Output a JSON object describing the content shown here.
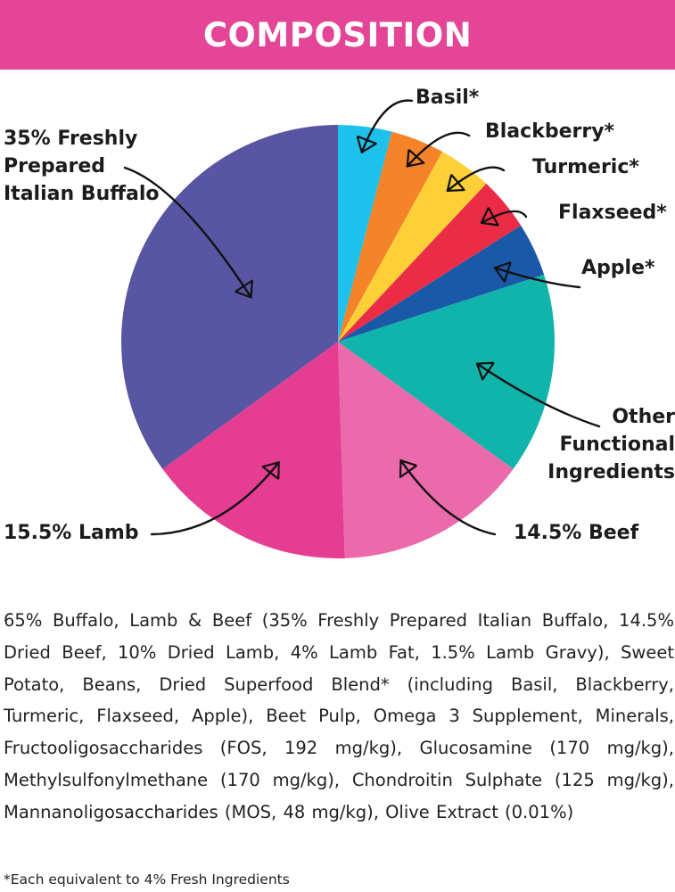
{
  "header": {
    "title": "COMPOSITION",
    "color": "#e54597"
  },
  "chart_data": {
    "type": "pie",
    "title": "COMPOSITION",
    "start_angle_deg": 0,
    "direction": "clockwise",
    "slices": [
      {
        "label": "Basil*",
        "value": 4,
        "color": "#1ec1ec"
      },
      {
        "label": "Blackberry*",
        "value": 4,
        "color": "#f4832a"
      },
      {
        "label": "Turmeric*",
        "value": 4,
        "color": "#fdd037"
      },
      {
        "label": "Flaxseed*",
        "value": 4,
        "color": "#eb2c46"
      },
      {
        "label": "Apple*",
        "value": 4,
        "color": "#1a59a8"
      },
      {
        "label": "Other\nFunctional\nIngredients",
        "value": 15,
        "color": "#10b4aa"
      },
      {
        "label": "14.5% Beef",
        "value": 14.5,
        "color": "#eb6aab"
      },
      {
        "label": "15.5% Lamb",
        "value": 15.5,
        "color": "#e53d91"
      },
      {
        "label": "35% Freshly\nPrepared\nItalian Buffalo",
        "value": 35,
        "color": "#5856a3"
      }
    ]
  },
  "ingredients_text": "65% Buffalo, Lamb & Beef (35% Freshly Prepared Italian Buffalo, 14.5% Dried Beef, 10% Dried Lamb, 4% Lamb Fat, 1.5% Lamb Gravy), Sweet Potato, Beans, Dried Superfood Blend* (including Basil, Blackberry, Turmeric, Flaxseed, Apple), Beet Pulp, Omega 3 Supplement, Minerals, Fructooligosaccharides (FOS, 192 mg/kg), Glucosamine (170 mg/kg), Methylsulfonylmethane (170 mg/kg), Chondroitin Sulphate (125 mg/kg), Mannanoligosaccharides (MOS, 48 mg/kg), Olive Extract (0.01%)",
  "footnote": "*Each equivalent to 4% Fresh Ingredients"
}
